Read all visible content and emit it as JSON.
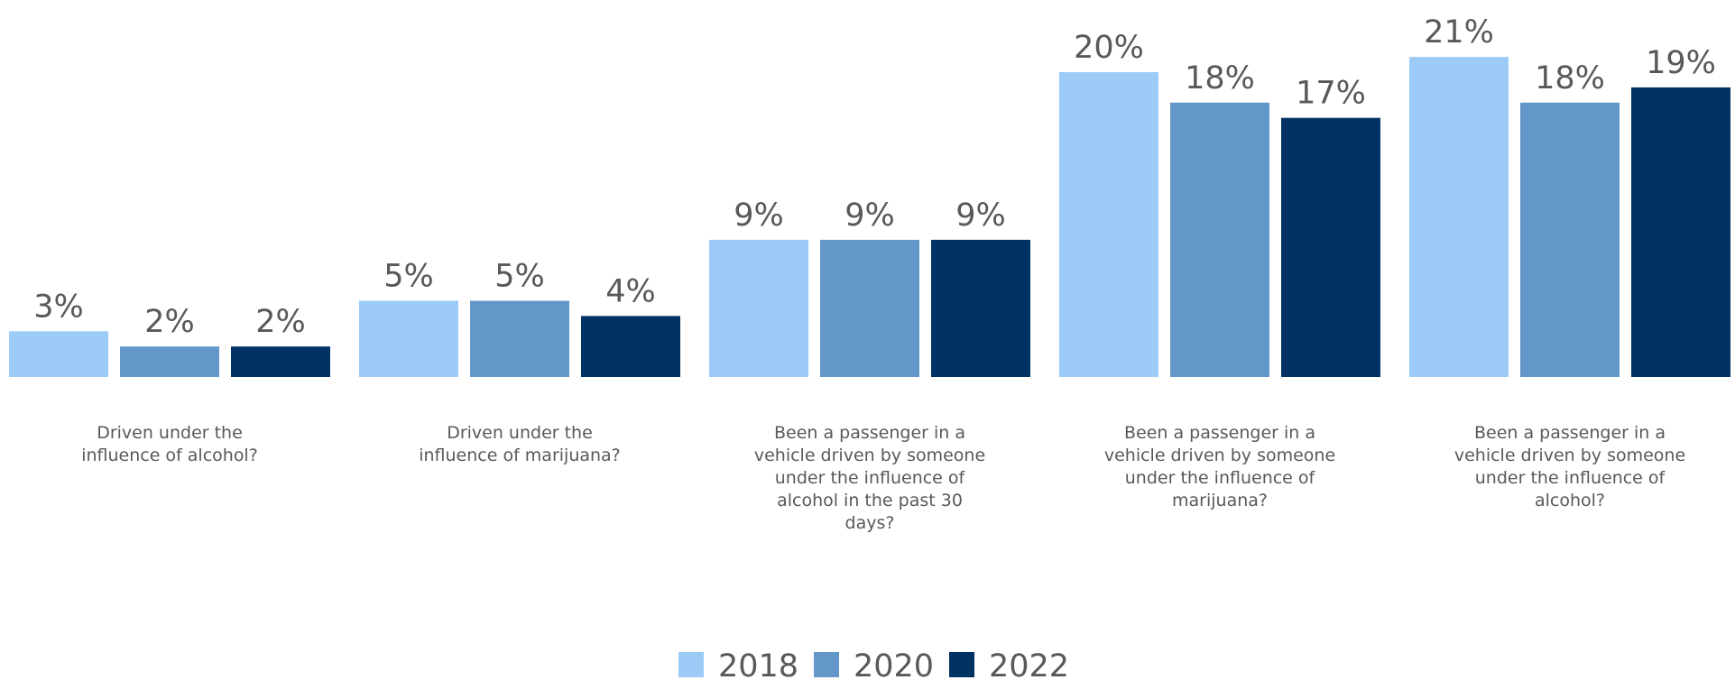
{
  "chart_data": {
    "type": "bar",
    "title": "",
    "xlabel": "",
    "ylabel": "",
    "ylim": [
      0,
      22
    ],
    "grid": false,
    "legend_position": "bottom-center",
    "categories": [
      [
        "Driven under the",
        "influence of alcohol?"
      ],
      [
        "Driven under the",
        "influence of marijuana?"
      ],
      [
        "Been a passenger in a",
        "vehicle driven by someone",
        "under the influence of",
        "alcohol in the past 30",
        "days?"
      ],
      [
        "Been a passenger in a",
        "vehicle driven by someone",
        "under the influence of",
        "marijuana?"
      ],
      [
        "Been a passenger in a",
        "vehicle driven by someone",
        "under the influence of",
        "alcohol?"
      ]
    ],
    "series": [
      {
        "name": "2018",
        "color": "#9ccbf8",
        "values": [
          3,
          5,
          9,
          20,
          21
        ],
        "labels": [
          "3%",
          "5%",
          "9%",
          "20%",
          "21%"
        ]
      },
      {
        "name": "2020",
        "color": "#6497c9",
        "values": [
          2,
          5,
          9,
          18,
          18
        ],
        "labels": [
          "2%",
          "5%",
          "9%",
          "18%",
          "18%"
        ]
      },
      {
        "name": "2022",
        "color": "#003363",
        "values": [
          2,
          4,
          9,
          17,
          19
        ],
        "labels": [
          "2%",
          "4%",
          "9%",
          "17%",
          "19%"
        ]
      }
    ]
  }
}
